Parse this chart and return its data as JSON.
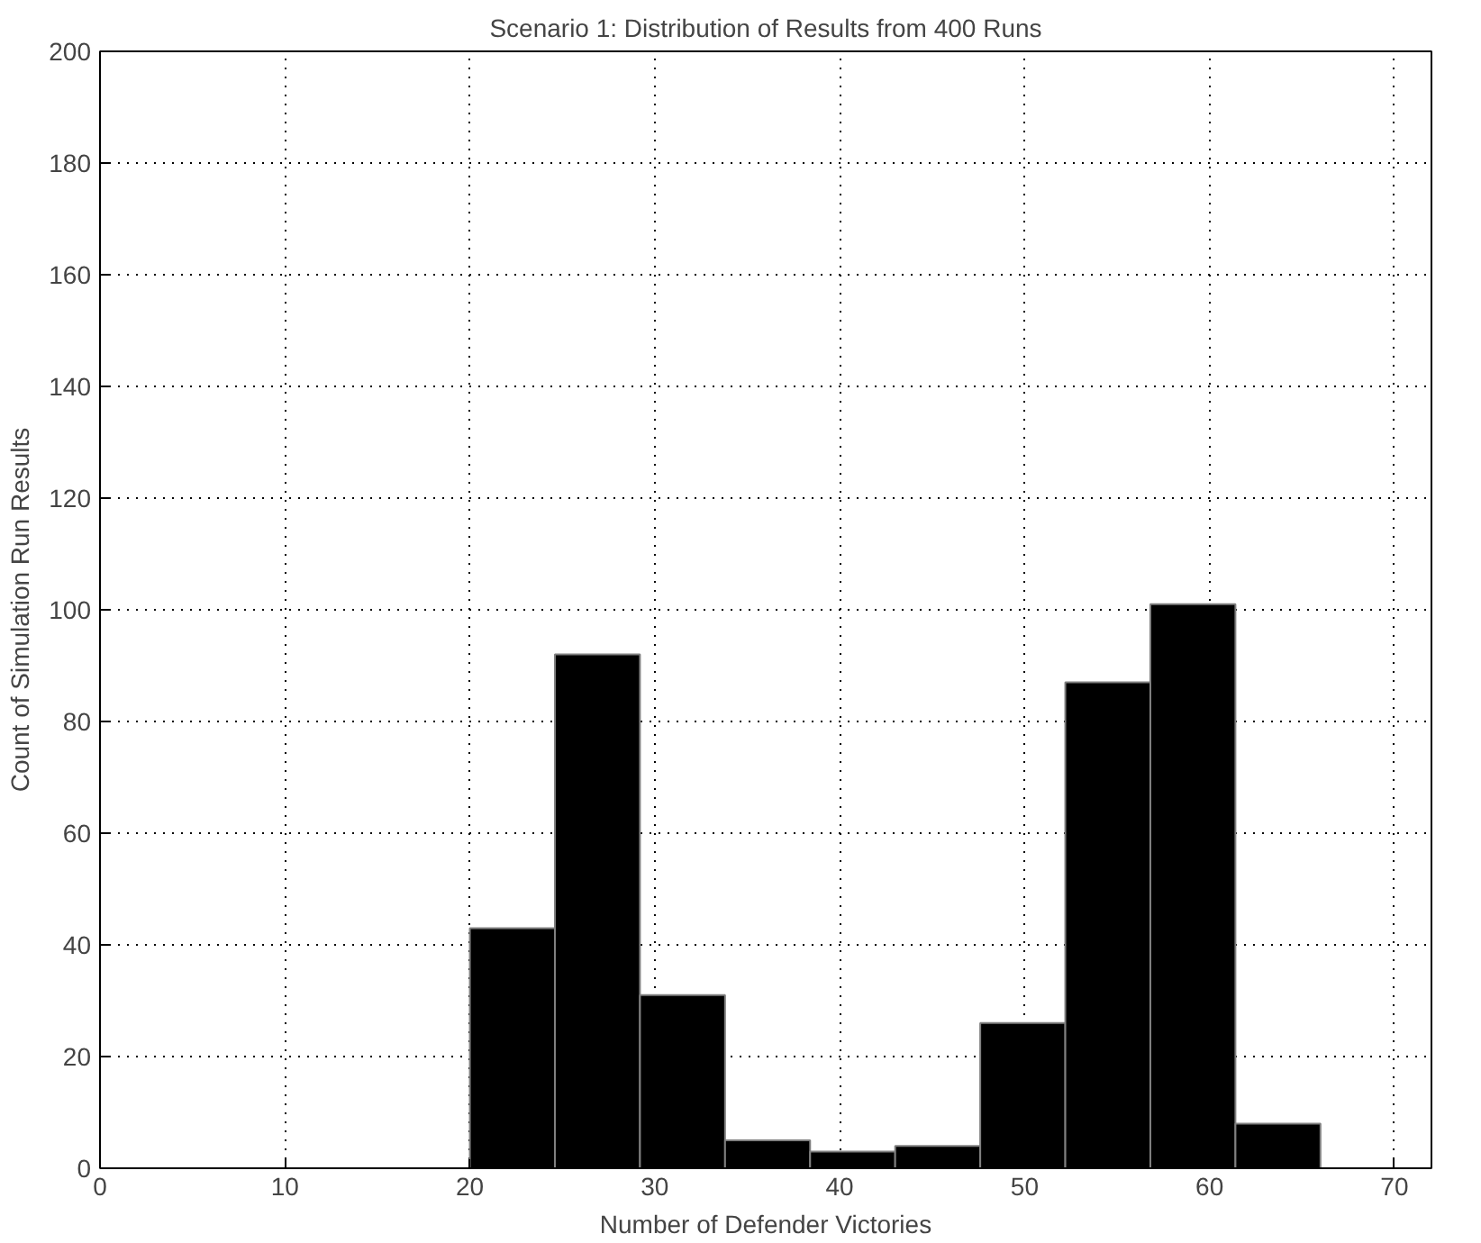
{
  "chart_data": {
    "type": "histogram",
    "title": "Scenario 1: Distribution of Results from 400 Runs",
    "xlabel": "Number of Defender Victories",
    "ylabel": "Count of Simulation Run Results",
    "bins": [
      20,
      24.6,
      29.2,
      33.8,
      38.4,
      43,
      47.6,
      52.2,
      56.8,
      61.4,
      66
    ],
    "values": [
      43,
      92,
      31,
      5,
      3,
      4,
      26,
      87,
      101,
      8
    ],
    "color": "#000000",
    "xlim": [
      0,
      72
    ],
    "xticks": [
      0,
      10,
      20,
      30,
      40,
      50,
      60,
      70
    ],
    "ylim": [
      0,
      200
    ],
    "yticks": [
      0,
      20,
      40,
      60,
      80,
      100,
      120,
      140,
      160,
      180,
      200
    ],
    "grid": true,
    "line_style": "dotted"
  }
}
